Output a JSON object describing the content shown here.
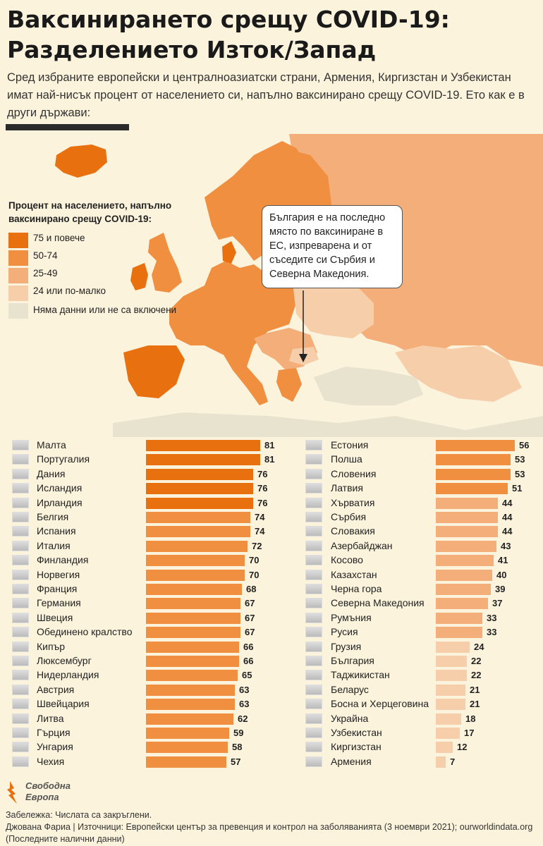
{
  "header": {
    "title_line1": "Ваксинирането срещу COVID-19:",
    "title_line2": "Разделението Изток/Запад",
    "subtitle": "Сред избраните европейски и централноазиатски страни, Армения, Киргизстан и Узбекистан имат най-нисък процент от населението си, напълно ваксинирано срещу COVID-19. Ето как е в други държави:"
  },
  "legend": {
    "title": "Процент на населението, напълно ваксинирано срещу COVID-19:",
    "items": [
      {
        "label": "75 и повече",
        "color": "#e8700f"
      },
      {
        "label": "50-74",
        "color": "#ef8f3f"
      },
      {
        "label": "25-49",
        "color": "#f3ae79"
      },
      {
        "label": "24 или по-малко",
        "color": "#f7ceaa"
      },
      {
        "label": "Няма данни или не са включени",
        "color": "#e8e3cf"
      }
    ]
  },
  "callout": {
    "text": "България е на последно място по ваксиниране в ЕС, изпреварена и от съседите си Сърбия и Северна Македония."
  },
  "chart_data": {
    "type": "bar",
    "unit": "%",
    "xlim": [
      0,
      100
    ],
    "series": [
      {
        "categories": [
          "Малта",
          "Португалия",
          "Дания",
          "Исландия",
          "Ирландия",
          "Белгия",
          "Испания",
          "Италия",
          "Финландия",
          "Норвегия",
          "Франция",
          "Германия",
          "Швеция",
          "Обединено кралство",
          "Кипър",
          "Люксембург",
          "Нидерландия",
          "Австрия",
          "Швейцария",
          "Литва",
          "Гърция",
          "Унгария",
          "Чехия"
        ],
        "values": [
          81,
          81,
          76,
          76,
          76,
          74,
          74,
          72,
          70,
          70,
          68,
          67,
          67,
          67,
          66,
          66,
          65,
          63,
          63,
          62,
          59,
          58,
          57
        ]
      },
      {
        "categories": [
          "Естония",
          "Полша",
          "Словения",
          "Латвия",
          "Хърватия",
          "Сърбия",
          "Словакия",
          "Азербайджан",
          "Косово",
          "Казахстан",
          "Черна гора",
          "Северна Македония",
          "Румъния",
          "Русия",
          "Грузия",
          "България",
          "Таджикистан",
          "Беларус",
          "Босна и Херцеговина",
          "Украйна",
          "Узбекистан",
          "Киргизстан",
          "Армения"
        ],
        "values": [
          56,
          53,
          53,
          51,
          44,
          44,
          44,
          43,
          41,
          40,
          39,
          37,
          33,
          33,
          24,
          22,
          22,
          21,
          21,
          18,
          17,
          12,
          7
        ]
      }
    ]
  },
  "footer": {
    "logo_line1": "Свободна",
    "logo_line2": "Европа",
    "note": "Забележка: Числата са закръглени.",
    "sources": "Джована Фариа | Източници: Европейски център за превенция и контрол на заболяванията (3 ноември 2021); ourworldindata.org (Последните налични данни)"
  }
}
